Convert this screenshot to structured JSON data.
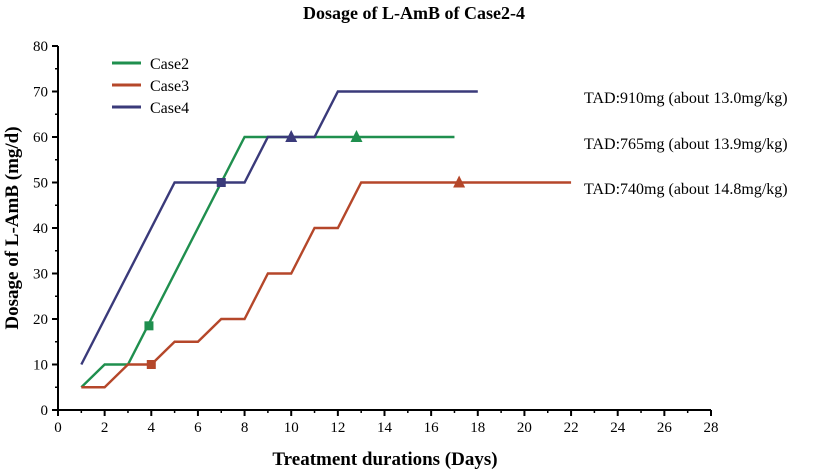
{
  "chart_data": {
    "type": "line",
    "title": "Dosage of L-AmB of Case2-4",
    "xlabel": "Treatment durations (Days)",
    "ylabel": "Dosage of L-AmB (mg/d)",
    "xlim": [
      0,
      28
    ],
    "ylim": [
      0,
      80
    ],
    "xticks": [
      0,
      2,
      4,
      6,
      8,
      10,
      12,
      14,
      16,
      18,
      20,
      22,
      24,
      26,
      28
    ],
    "yticks": [
      0,
      10,
      20,
      30,
      40,
      50,
      60,
      70,
      80
    ],
    "grid": false,
    "legend_position": "top-left",
    "series": [
      {
        "name": "Case2",
        "color": "#1f8f4e",
        "marker": "square",
        "points": [
          [
            1,
            5
          ],
          [
            2,
            10
          ],
          [
            3,
            10
          ],
          [
            8,
            60
          ],
          [
            17,
            60
          ]
        ],
        "marker_points": [
          [
            3.9,
            18.5
          ]
        ],
        "marker_label": "TAD:765mg (about 13.9mg/kg)",
        "end_marker": "triangle",
        "end_marker_point": [
          12.8,
          60
        ]
      },
      {
        "name": "Case3",
        "color": "#b5472a",
        "marker": "square",
        "points": [
          [
            1,
            5
          ],
          [
            2,
            5
          ],
          [
            3,
            10
          ],
          [
            4,
            10
          ],
          [
            5,
            15
          ],
          [
            6,
            15
          ],
          [
            7,
            20
          ],
          [
            8,
            20
          ],
          [
            9,
            30
          ],
          [
            10,
            30
          ],
          [
            11,
            40
          ],
          [
            12,
            40
          ],
          [
            13,
            50
          ],
          [
            22,
            50
          ]
        ],
        "marker_points": [
          [
            4,
            10
          ]
        ],
        "marker_label": "TAD:740mg (about 14.8mg/kg)",
        "end_marker": "triangle",
        "end_marker_point": [
          17.2,
          50
        ]
      },
      {
        "name": "Case4",
        "color": "#3a3a7a",
        "marker": "square",
        "points": [
          [
            1,
            10
          ],
          [
            5,
            50
          ],
          [
            8,
            50
          ],
          [
            9,
            60
          ],
          [
            11,
            60
          ],
          [
            12,
            70
          ],
          [
            18,
            70
          ]
        ],
        "marker_points": [
          [
            7,
            50
          ]
        ],
        "marker_label": "TAD:910mg (about 13.0mg/kg)",
        "end_marker": "triangle",
        "end_marker_point": [
          10,
          60
        ]
      }
    ],
    "annotations": [
      "TAD:910mg (about 13.0mg/kg)",
      "TAD:765mg (about 13.9mg/kg)",
      "TAD:740mg (about 14.8mg/kg)"
    ]
  }
}
